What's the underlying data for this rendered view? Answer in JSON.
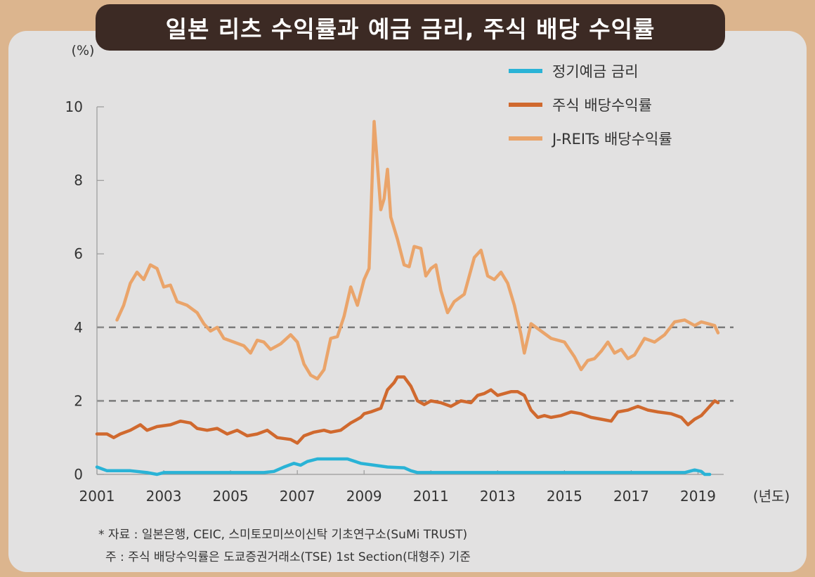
{
  "chart_data": {
    "type": "line",
    "title": "일본 리츠 수익률과 예금 금리, 주식 배당 수익률",
    "ylabel": "(%)",
    "xlabel": "(년도)",
    "xlim": [
      2001,
      2019.6
    ],
    "ylim": [
      0,
      10
    ],
    "x_ticks": [
      "2001",
      "2003",
      "2005",
      "2007",
      "2009",
      "2011",
      "2013",
      "2015",
      "2017",
      "2019"
    ],
    "y_ticks": [
      "0",
      "2",
      "4",
      "6",
      "8",
      "10"
    ],
    "reference_lines": [
      2,
      4
    ],
    "legend_position": "top-right",
    "series": [
      {
        "name": "정기예금 금리",
        "color": "#2ab3d6",
        "points": [
          [
            2001,
            0.2
          ],
          [
            2001.3,
            0.1
          ],
          [
            2002,
            0.1
          ],
          [
            2002.5,
            0.05
          ],
          [
            2002.8,
            0.0
          ],
          [
            2003,
            0.05
          ],
          [
            2004,
            0.05
          ],
          [
            2005,
            0.05
          ],
          [
            2006,
            0.05
          ],
          [
            2006.3,
            0.08
          ],
          [
            2006.6,
            0.2
          ],
          [
            2006.9,
            0.3
          ],
          [
            2007.1,
            0.25
          ],
          [
            2007.3,
            0.35
          ],
          [
            2007.6,
            0.42
          ],
          [
            2008,
            0.42
          ],
          [
            2008.5,
            0.42
          ],
          [
            2008.9,
            0.3
          ],
          [
            2009.3,
            0.25
          ],
          [
            2009.7,
            0.2
          ],
          [
            2010.2,
            0.18
          ],
          [
            2010.4,
            0.1
          ],
          [
            2010.6,
            0.05
          ],
          [
            2011,
            0.05
          ],
          [
            2013,
            0.05
          ],
          [
            2015,
            0.05
          ],
          [
            2017,
            0.05
          ],
          [
            2018.6,
            0.05
          ],
          [
            2018.9,
            0.12
          ],
          [
            2019.1,
            0.08
          ],
          [
            2019.2,
            0.0
          ],
          [
            2019.35,
            0.0
          ]
        ]
      },
      {
        "name": "주식 배당수익률",
        "color": "#d0692e",
        "points": [
          [
            2001,
            1.1
          ],
          [
            2001.3,
            1.1
          ],
          [
            2001.5,
            1.0
          ],
          [
            2001.7,
            1.1
          ],
          [
            2002,
            1.2
          ],
          [
            2002.3,
            1.35
          ],
          [
            2002.5,
            1.2
          ],
          [
            2002.8,
            1.3
          ],
          [
            2003.2,
            1.35
          ],
          [
            2003.5,
            1.45
          ],
          [
            2003.8,
            1.4
          ],
          [
            2004,
            1.25
          ],
          [
            2004.3,
            1.2
          ],
          [
            2004.6,
            1.25
          ],
          [
            2004.9,
            1.1
          ],
          [
            2005.2,
            1.2
          ],
          [
            2005.5,
            1.05
          ],
          [
            2005.8,
            1.1
          ],
          [
            2006.1,
            1.2
          ],
          [
            2006.4,
            1.0
          ],
          [
            2006.8,
            0.95
          ],
          [
            2007,
            0.85
          ],
          [
            2007.2,
            1.05
          ],
          [
            2007.5,
            1.15
          ],
          [
            2007.8,
            1.2
          ],
          [
            2008,
            1.15
          ],
          [
            2008.3,
            1.2
          ],
          [
            2008.6,
            1.4
          ],
          [
            2008.9,
            1.55
          ],
          [
            2009,
            1.65
          ],
          [
            2009.2,
            1.7
          ],
          [
            2009.5,
            1.8
          ],
          [
            2009.7,
            2.3
          ],
          [
            2009.9,
            2.5
          ],
          [
            2010,
            2.65
          ],
          [
            2010.2,
            2.65
          ],
          [
            2010.4,
            2.4
          ],
          [
            2010.6,
            2.0
          ],
          [
            2010.8,
            1.9
          ],
          [
            2011,
            2.0
          ],
          [
            2011.3,
            1.95
          ],
          [
            2011.6,
            1.85
          ],
          [
            2011.9,
            2.0
          ],
          [
            2012.2,
            1.95
          ],
          [
            2012.4,
            2.15
          ],
          [
            2012.6,
            2.2
          ],
          [
            2012.8,
            2.3
          ],
          [
            2013,
            2.15
          ],
          [
            2013.2,
            2.2
          ],
          [
            2013.4,
            2.25
          ],
          [
            2013.6,
            2.25
          ],
          [
            2013.8,
            2.15
          ],
          [
            2014,
            1.75
          ],
          [
            2014.2,
            1.55
          ],
          [
            2014.4,
            1.6
          ],
          [
            2014.6,
            1.55
          ],
          [
            2014.9,
            1.6
          ],
          [
            2015.2,
            1.7
          ],
          [
            2015.5,
            1.65
          ],
          [
            2015.8,
            1.55
          ],
          [
            2016.1,
            1.5
          ],
          [
            2016.4,
            1.45
          ],
          [
            2016.6,
            1.7
          ],
          [
            2016.9,
            1.75
          ],
          [
            2017.2,
            1.85
          ],
          [
            2017.5,
            1.75
          ],
          [
            2017.8,
            1.7
          ],
          [
            2018.2,
            1.65
          ],
          [
            2018.5,
            1.55
          ],
          [
            2018.7,
            1.35
          ],
          [
            2018.9,
            1.5
          ],
          [
            2019.1,
            1.6
          ],
          [
            2019.3,
            1.8
          ],
          [
            2019.5,
            2.0
          ],
          [
            2019.6,
            1.95
          ]
        ]
      },
      {
        "name": "J-REITs 배당수익률",
        "color": "#eaa46a",
        "points": [
          [
            2001.6,
            4.2
          ],
          [
            2001.8,
            4.6
          ],
          [
            2002,
            5.2
          ],
          [
            2002.2,
            5.5
          ],
          [
            2002.4,
            5.3
          ],
          [
            2002.6,
            5.7
          ],
          [
            2002.8,
            5.6
          ],
          [
            2003,
            5.1
          ],
          [
            2003.2,
            5.15
          ],
          [
            2003.4,
            4.7
          ],
          [
            2003.7,
            4.6
          ],
          [
            2004,
            4.4
          ],
          [
            2004.2,
            4.1
          ],
          [
            2004.4,
            3.9
          ],
          [
            2004.6,
            4.0
          ],
          [
            2004.8,
            3.7
          ],
          [
            2005.1,
            3.6
          ],
          [
            2005.4,
            3.5
          ],
          [
            2005.6,
            3.3
          ],
          [
            2005.8,
            3.65
          ],
          [
            2006,
            3.6
          ],
          [
            2006.2,
            3.4
          ],
          [
            2006.5,
            3.55
          ],
          [
            2006.8,
            3.8
          ],
          [
            2007,
            3.6
          ],
          [
            2007.2,
            3.0
          ],
          [
            2007.4,
            2.7
          ],
          [
            2007.6,
            2.6
          ],
          [
            2007.8,
            2.85
          ],
          [
            2008,
            3.7
          ],
          [
            2008.2,
            3.75
          ],
          [
            2008.4,
            4.3
          ],
          [
            2008.6,
            5.1
          ],
          [
            2008.8,
            4.6
          ],
          [
            2009,
            5.3
          ],
          [
            2009.15,
            5.6
          ],
          [
            2009.3,
            9.6
          ],
          [
            2009.5,
            7.2
          ],
          [
            2009.6,
            7.5
          ],
          [
            2009.7,
            8.3
          ],
          [
            2009.8,
            7.0
          ],
          [
            2010,
            6.4
          ],
          [
            2010.2,
            5.7
          ],
          [
            2010.35,
            5.65
          ],
          [
            2010.5,
            6.2
          ],
          [
            2010.7,
            6.15
          ],
          [
            2010.85,
            5.4
          ],
          [
            2011,
            5.6
          ],
          [
            2011.15,
            5.7
          ],
          [
            2011.3,
            5.0
          ],
          [
            2011.5,
            4.4
          ],
          [
            2011.7,
            4.7
          ],
          [
            2012,
            4.9
          ],
          [
            2012.3,
            5.9
          ],
          [
            2012.5,
            6.1
          ],
          [
            2012.7,
            5.4
          ],
          [
            2012.9,
            5.3
          ],
          [
            2013.1,
            5.5
          ],
          [
            2013.3,
            5.2
          ],
          [
            2013.5,
            4.6
          ],
          [
            2013.7,
            3.8
          ],
          [
            2013.8,
            3.3
          ],
          [
            2014,
            4.1
          ],
          [
            2014.3,
            3.9
          ],
          [
            2014.6,
            3.7
          ],
          [
            2015,
            3.6
          ],
          [
            2015.3,
            3.2
          ],
          [
            2015.5,
            2.85
          ],
          [
            2015.7,
            3.1
          ],
          [
            2015.9,
            3.15
          ],
          [
            2016.1,
            3.35
          ],
          [
            2016.3,
            3.6
          ],
          [
            2016.5,
            3.3
          ],
          [
            2016.7,
            3.4
          ],
          [
            2016.9,
            3.15
          ],
          [
            2017.1,
            3.25
          ],
          [
            2017.4,
            3.7
          ],
          [
            2017.7,
            3.6
          ],
          [
            2018,
            3.8
          ],
          [
            2018.3,
            4.15
          ],
          [
            2018.6,
            4.2
          ],
          [
            2018.9,
            4.05
          ],
          [
            2019.1,
            4.15
          ],
          [
            2019.3,
            4.1
          ],
          [
            2019.5,
            4.05
          ],
          [
            2019.6,
            3.85
          ]
        ]
      }
    ]
  },
  "notes": {
    "source": "* 자료 : 일본은행, CEIC, 스미토모미쓰이신탁 기초연구소(SuMi TRUST)",
    "note": "주 : 주식 배당수익률은 도쿄증권거래소(TSE) 1st Section(대형주) 기준"
  }
}
